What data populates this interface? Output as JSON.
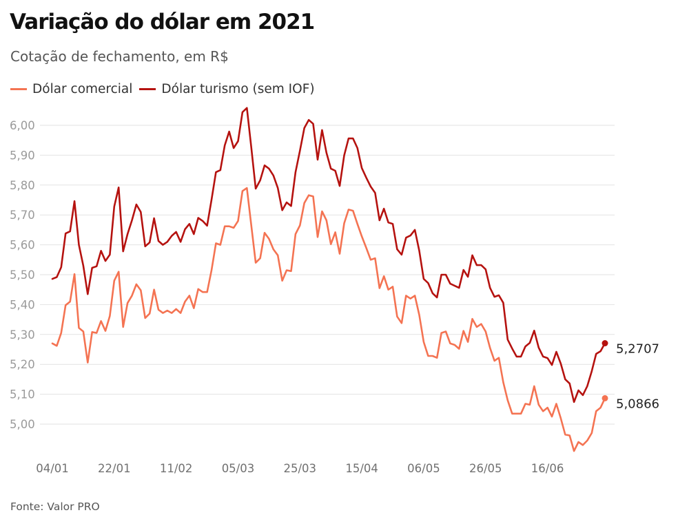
{
  "header": {
    "title": "Variação do dólar em 2021",
    "subtitle": "Cotação de fechamento, em R$"
  },
  "footer": {
    "source": "Fonte: Valor PRO"
  },
  "colors": {
    "comercial": "#f47352",
    "turismo": "#b5120f",
    "grid": "#e2e2e2"
  },
  "chart_data": {
    "type": "line",
    "title": "Variação do dólar em 2021",
    "subtitle": "Cotação de fechamento, em R$",
    "xlabel": "",
    "ylabel": "",
    "ylim": [
      4.9,
      6.06
    ],
    "yticks": [
      "6,00",
      "5,90",
      "5,80",
      "5,70",
      "5,60",
      "5,50",
      "5,40",
      "5,30",
      "5,20",
      "5,10",
      "5,00"
    ],
    "ytick_values": [
      6.0,
      5.9,
      5.8,
      5.7,
      5.6,
      5.5,
      5.4,
      5.3,
      5.2,
      5.1,
      5.0
    ],
    "xticks": [
      {
        "label": "04/01",
        "index": 0
      },
      {
        "label": "22/01",
        "index": 14
      },
      {
        "label": "11/02",
        "index": 28
      },
      {
        "label": "05/03",
        "index": 42
      },
      {
        "label": "25/03",
        "index": 56
      },
      {
        "label": "15/04",
        "index": 70
      },
      {
        "label": "06/05",
        "index": 84
      },
      {
        "label": "26/05",
        "index": 98
      },
      {
        "label": "16/06",
        "index": 112
      }
    ],
    "grid": true,
    "legend_position": "top-left",
    "series": [
      {
        "name": "Dólar comercial",
        "color": "#f47352",
        "end_label": "5,0866",
        "values": [
          5.27,
          5.262,
          5.305,
          5.398,
          5.41,
          5.502,
          5.322,
          5.31,
          5.206,
          5.308,
          5.305,
          5.345,
          5.312,
          5.362,
          5.48,
          5.51,
          5.325,
          5.405,
          5.43,
          5.468,
          5.448,
          5.355,
          5.37,
          5.45,
          5.383,
          5.372,
          5.38,
          5.372,
          5.385,
          5.372,
          5.41,
          5.43,
          5.388,
          5.452,
          5.442,
          5.442,
          5.515,
          5.605,
          5.6,
          5.662,
          5.662,
          5.657,
          5.68,
          5.78,
          5.79,
          5.665,
          5.54,
          5.555,
          5.64,
          5.62,
          5.585,
          5.565,
          5.48,
          5.515,
          5.512,
          5.636,
          5.665,
          5.74,
          5.766,
          5.762,
          5.626,
          5.712,
          5.682,
          5.602,
          5.642,
          5.57,
          5.672,
          5.718,
          5.714,
          5.67,
          5.628,
          5.59,
          5.55,
          5.555,
          5.455,
          5.495,
          5.45,
          5.46,
          5.36,
          5.338,
          5.43,
          5.42,
          5.43,
          5.365,
          5.275,
          5.228,
          5.228,
          5.222,
          5.305,
          5.31,
          5.27,
          5.265,
          5.252,
          5.312,
          5.275,
          5.352,
          5.325,
          5.335,
          5.31,
          5.255,
          5.212,
          5.222,
          5.14,
          5.08,
          5.035,
          5.035,
          5.035,
          5.068,
          5.065,
          5.127,
          5.065,
          5.043,
          5.055,
          5.025,
          5.068,
          5.02,
          4.965,
          4.962,
          4.91,
          4.94,
          4.93,
          4.945,
          4.97,
          5.043,
          5.055,
          5.0866
        ]
      },
      {
        "name": "Dólar turismo (sem IOF)",
        "color": "#b5120f",
        "end_label": "5,2707",
        "values": [
          5.486,
          5.492,
          5.525,
          5.638,
          5.645,
          5.746,
          5.6,
          5.53,
          5.435,
          5.523,
          5.528,
          5.58,
          5.546,
          5.567,
          5.728,
          5.792,
          5.578,
          5.636,
          5.682,
          5.735,
          5.71,
          5.595,
          5.608,
          5.689,
          5.613,
          5.6,
          5.61,
          5.63,
          5.643,
          5.61,
          5.652,
          5.67,
          5.636,
          5.69,
          5.68,
          5.664,
          5.751,
          5.843,
          5.85,
          5.933,
          5.979,
          5.924,
          5.947,
          6.044,
          6.058,
          5.926,
          5.788,
          5.816,
          5.866,
          5.855,
          5.832,
          5.79,
          5.716,
          5.742,
          5.73,
          5.843,
          5.915,
          5.991,
          6.018,
          6.005,
          5.885,
          5.984,
          5.908,
          5.855,
          5.848,
          5.797,
          5.899,
          5.956,
          5.956,
          5.924,
          5.857,
          5.825,
          5.795,
          5.774,
          5.682,
          5.721,
          5.675,
          5.67,
          5.585,
          5.567,
          5.624,
          5.631,
          5.65,
          5.58,
          5.486,
          5.472,
          5.438,
          5.424,
          5.5,
          5.5,
          5.47,
          5.463,
          5.456,
          5.516,
          5.493,
          5.565,
          5.532,
          5.532,
          5.518,
          5.456,
          5.426,
          5.431,
          5.406,
          5.283,
          5.253,
          5.226,
          5.226,
          5.26,
          5.272,
          5.313,
          5.256,
          5.226,
          5.221,
          5.198,
          5.242,
          5.203,
          5.15,
          5.136,
          5.074,
          5.113,
          5.097,
          5.127,
          5.177,
          5.235,
          5.244,
          5.2707
        ]
      }
    ]
  }
}
